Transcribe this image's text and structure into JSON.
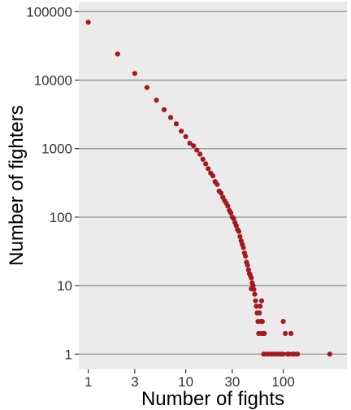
{
  "chart_data": {
    "type": "scatter",
    "title": "",
    "xlabel": "Number of fights",
    "ylabel": "Number of fighters",
    "x_scale": "log",
    "y_scale": "log",
    "xlim": [
      0.8,
      450
    ],
    "ylim": [
      0.6,
      140000
    ],
    "x_ticks": [
      1,
      3,
      10,
      30,
      100
    ],
    "x_tick_labels": [
      "1",
      "3",
      "10",
      "30",
      "100"
    ],
    "y_ticks": [
      1,
      10,
      100,
      1000,
      10000,
      100000
    ],
    "y_tick_labels": [
      "1",
      "10",
      "100",
      "1000",
      "10000",
      "100000"
    ],
    "grid": "horizontal-major",
    "legend": "none",
    "colors": {
      "point": "#a31a1e",
      "panel": "#ebebeb",
      "gridline": "#9a9a9a"
    },
    "points": [
      [
        1,
        70000
      ],
      [
        2,
        24000
      ],
      [
        3,
        12500
      ],
      [
        4,
        7800
      ],
      [
        5,
        5100
      ],
      [
        6,
        3700
      ],
      [
        7,
        2850
      ],
      [
        8,
        2300
      ],
      [
        9,
        1800
      ],
      [
        10,
        1500
      ],
      [
        11,
        1200
      ],
      [
        12,
        1100
      ],
      [
        13,
        950
      ],
      [
        14,
        830
      ],
      [
        15,
        700
      ],
      [
        16,
        600
      ],
      [
        17,
        510
      ],
      [
        18,
        440
      ],
      [
        19,
        400
      ],
      [
        20,
        330
      ],
      [
        21,
        300
      ],
      [
        22,
        240
      ],
      [
        23,
        225
      ],
      [
        24,
        195
      ],
      [
        25,
        175
      ],
      [
        26,
        160
      ],
      [
        27,
        145
      ],
      [
        28,
        125
      ],
      [
        29,
        115
      ],
      [
        30,
        100
      ],
      [
        31,
        95
      ],
      [
        32,
        83
      ],
      [
        33,
        75
      ],
      [
        34,
        66
      ],
      [
        35,
        62
      ],
      [
        36,
        52
      ],
      [
        37,
        45
      ],
      [
        38,
        40
      ],
      [
        39,
        36
      ],
      [
        40,
        30
      ],
      [
        41,
        27
      ],
      [
        42,
        22
      ],
      [
        43,
        20
      ],
      [
        44,
        17
      ],
      [
        45,
        15
      ],
      [
        46,
        14
      ],
      [
        47,
        13
      ],
      [
        48,
        11
      ],
      [
        49,
        10
      ],
      [
        50,
        8.8
      ],
      [
        51,
        7.5
      ],
      [
        52,
        6
      ],
      [
        53,
        5
      ],
      [
        54,
        4
      ],
      [
        55,
        3
      ],
      [
        56,
        2
      ],
      [
        57,
        4
      ],
      [
        58,
        5
      ],
      [
        59,
        3
      ],
      [
        60,
        2
      ],
      [
        61,
        3
      ],
      [
        62,
        2
      ],
      [
        63,
        1
      ],
      [
        64,
        2
      ],
      [
        65,
        1
      ],
      [
        70,
        1
      ],
      [
        75,
        1
      ],
      [
        80,
        1
      ],
      [
        85,
        1
      ],
      [
        90,
        1
      ],
      [
        95,
        1
      ],
      [
        100,
        1
      ],
      [
        105,
        2
      ],
      [
        110,
        1
      ],
      [
        115,
        1
      ],
      [
        120,
        2
      ],
      [
        125,
        1
      ],
      [
        130,
        1
      ],
      [
        140,
        1
      ],
      [
        300,
        1
      ],
      [
        100,
        3
      ],
      [
        60,
        6
      ],
      [
        47,
        9
      ]
    ]
  }
}
